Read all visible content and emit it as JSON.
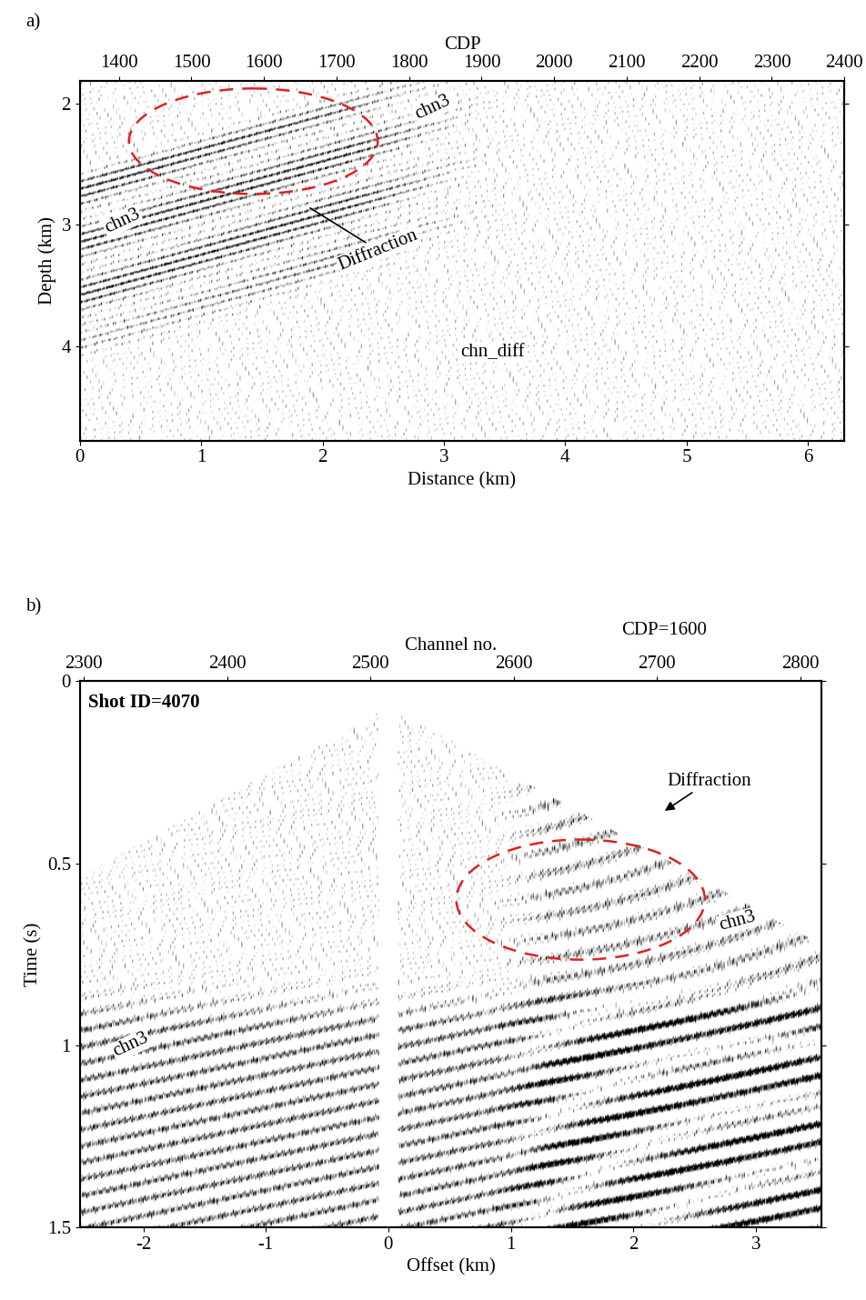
{
  "chart_data": [
    {
      "type": "seismic_section",
      "panel_label": "a)",
      "xlabel": "Distance (km)",
      "ylabel": "Depth (km)",
      "x2label": "CDP",
      "xlim": [
        0,
        6.3
      ],
      "xticks": [
        0,
        1,
        2,
        3,
        4,
        5,
        6
      ],
      "ylim": [
        4.78,
        1.81
      ],
      "yticks": [
        2,
        3,
        4
      ],
      "x2lim": [
        1346,
        2400
      ],
      "x2ticks": [
        1400,
        1500,
        1600,
        1700,
        1800,
        1900,
        2000,
        2100,
        2200,
        2300,
        2400
      ],
      "annotations": [
        "chn3",
        "chn3",
        "Diffraction",
        "chn_diff"
      ],
      "color": "#e02020"
    },
    {
      "type": "seismic_gather",
      "panel_label": "b)",
      "xlabel": "Offset (km)",
      "ylabel": "Time (s)",
      "x2label": "Channel no.",
      "xlim": [
        -2.52,
        3.54
      ],
      "xticks": [
        -2,
        -1,
        0,
        1,
        2,
        3
      ],
      "ylim": [
        1.5,
        0
      ],
      "yticks": [
        0,
        0.5,
        1,
        1.5
      ],
      "x2lim": [
        2297,
        2815
      ],
      "x2ticks": [
        2300,
        2400,
        2500,
        2600,
        2700,
        2800
      ],
      "annotations": [
        "Shot ID=4070",
        "CDP=1600",
        "Diffraction",
        "chn3",
        "chn3"
      ],
      "color": "#e02020"
    }
  ]
}
